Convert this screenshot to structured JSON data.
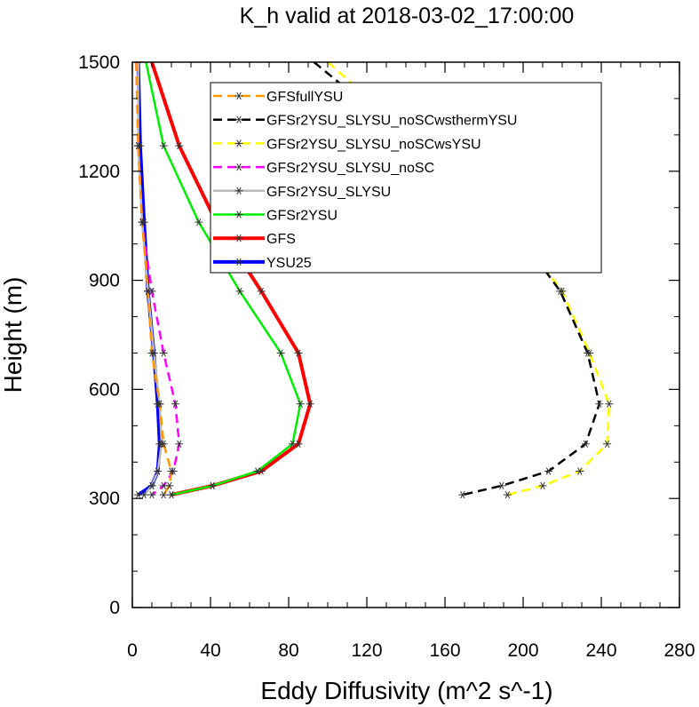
{
  "chart_data": {
    "type": "line",
    "title": "K_h valid at 2018-03-02_17:00:00",
    "xlabel": "Eddy Diffusivity (m^2 s^-1)",
    "ylabel": "Height (m)",
    "xlim": [
      0,
      280
    ],
    "ylim": [
      0,
      1500
    ],
    "xticks": [
      "0",
      "40",
      "80",
      "120",
      "160",
      "200",
      "240",
      "280"
    ],
    "yticks": [
      "0",
      "300",
      "600",
      "900",
      "1200",
      "1500"
    ],
    "legend_position": "top-center",
    "grid": false,
    "series": [
      {
        "name": "GFSfullYSU",
        "color": "#ff9900",
        "dash": "dashed",
        "x": [
          2,
          3,
          5,
          8,
          10,
          14,
          16,
          20,
          19,
          16
        ],
        "y": [
          1500,
          1270,
          1060,
          870,
          700,
          560,
          450,
          375,
          335,
          310
        ]
      },
      {
        "name": "GFSr2YSU_SLYSU_noSCwsthermYSU",
        "color": "#000000",
        "dash": "dashed",
        "x": [
          93,
          193,
          219,
          233,
          239,
          232,
          213,
          189,
          169
        ],
        "y": [
          1500,
          1060,
          870,
          700,
          560,
          450,
          375,
          335,
          310
        ]
      },
      {
        "name": "GFSr2YSU_SLYSU_noSCwsYSU",
        "color": "#ffff00",
        "dash": "dashed",
        "x": [
          100,
          193,
          220,
          234,
          244,
          243,
          229,
          210,
          192
        ],
        "y": [
          1500,
          1060,
          870,
          700,
          560,
          450,
          375,
          335,
          310
        ]
      },
      {
        "name": "GFSr2YSU_SLYSU_noSC",
        "color": "#ff00ff",
        "dash": "dashed",
        "x": [
          2,
          3,
          5,
          10,
          16,
          22,
          24,
          21,
          16,
          10
        ],
        "y": [
          1500,
          1270,
          1060,
          870,
          700,
          560,
          450,
          375,
          335,
          310
        ]
      },
      {
        "name": "GFSr2YSU_SLYSU",
        "color": "#bbbbbb",
        "dash": "solid",
        "x": [
          3,
          3,
          5,
          8,
          11,
          14,
          15,
          13,
          10,
          6
        ],
        "y": [
          1500,
          1270,
          1060,
          870,
          700,
          560,
          450,
          375,
          335,
          310
        ]
      },
      {
        "name": "GFSr2YSU",
        "color": "#00ee00",
        "dash": "solid",
        "x": [
          7,
          16,
          34,
          55,
          76,
          86,
          82,
          64,
          41,
          20
        ],
        "y": [
          1500,
          1270,
          1060,
          870,
          700,
          560,
          450,
          375,
          335,
          310
        ]
      },
      {
        "name": "GFS",
        "color": "#ff0000",
        "dash": "solid",
        "x": [
          10,
          24,
          43,
          66,
          85,
          91,
          85,
          66,
          41,
          20
        ],
        "y": [
          1500,
          1270,
          1060,
          870,
          700,
          560,
          450,
          375,
          335,
          310
        ]
      },
      {
        "name": "YSU25",
        "color": "#0000ff",
        "dash": "solid",
        "x": [
          3,
          4,
          6,
          8,
          11,
          13,
          14,
          13,
          10,
          3
        ],
        "y": [
          1500,
          1270,
          1060,
          870,
          700,
          560,
          450,
          375,
          335,
          310
        ]
      }
    ]
  }
}
